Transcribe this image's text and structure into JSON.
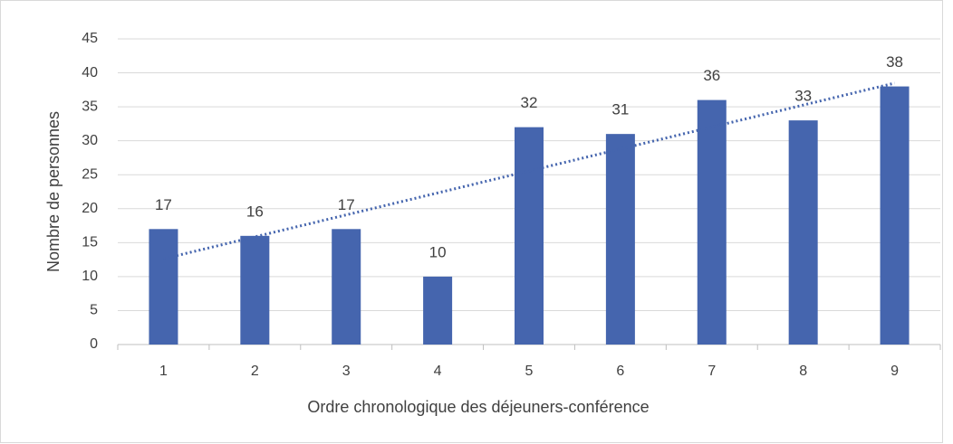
{
  "chart_data": {
    "type": "bar",
    "x_label": "Ordre chronologique des déjeuners-conférence",
    "y_label": "Nombre de personnes",
    "categories": [
      "1",
      "2",
      "3",
      "4",
      "5",
      "6",
      "7",
      "8",
      "9"
    ],
    "values": [
      17,
      16,
      17,
      10,
      32,
      31,
      36,
      33,
      38
    ],
    "color": "#4565ae",
    "ylim": [
      0,
      45
    ],
    "yticks": [
      0,
      5,
      10,
      15,
      20,
      25,
      30,
      35,
      40,
      45
    ],
    "grid": true,
    "trendline": "linear",
    "data_labels": true
  }
}
